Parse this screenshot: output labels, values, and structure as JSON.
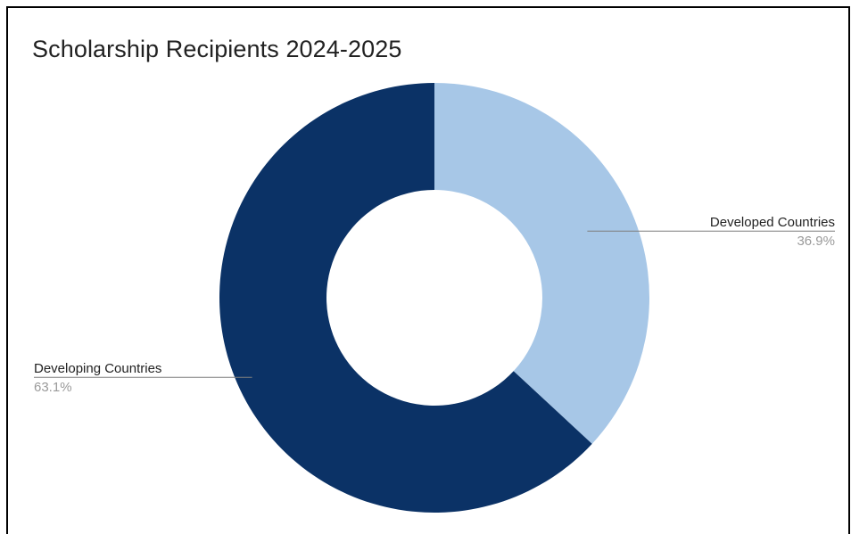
{
  "chart_data": {
    "type": "pie",
    "title": "Scholarship Recipients 2024-2025",
    "donut": true,
    "slices": [
      {
        "label": "Developed Countries",
        "value": 36.9,
        "percent_label": "36.9%",
        "color": "#a7c7e7"
      },
      {
        "label": "Developing Countries",
        "value": 63.1,
        "percent_label": "63.1%",
        "color": "#0b3266"
      }
    ],
    "legend": "none",
    "label_style": "callout lines with name and percent"
  }
}
